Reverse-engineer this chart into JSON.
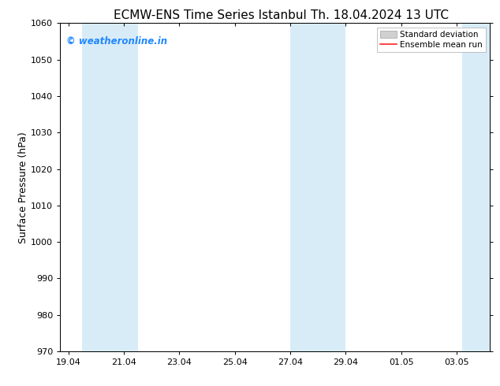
{
  "title_left": "ECMW-ENS Time Series Istanbul",
  "title_right": "Th. 18.04.2024 13 UTC",
  "ylabel": "Surface Pressure (hPa)",
  "ylim": [
    970,
    1060
  ],
  "yticks": [
    970,
    980,
    990,
    1000,
    1010,
    1020,
    1030,
    1040,
    1050,
    1060
  ],
  "xtick_labels": [
    "19.04",
    "21.04",
    "23.04",
    "25.04",
    "27.04",
    "29.04",
    "01.05",
    "03.05"
  ],
  "xtick_positions": [
    0,
    2,
    4,
    6,
    8,
    10,
    12,
    14
  ],
  "xlim": [
    -0.3,
    15.2
  ],
  "shaded_bands": [
    {
      "x_start": 0.5,
      "x_end": 2.5
    },
    {
      "x_start": 8.0,
      "x_end": 10.0
    },
    {
      "x_start": 14.2,
      "x_end": 15.2
    }
  ],
  "shade_color": "#d8ecf8",
  "background_color": "#ffffff",
  "legend_std_color": "#d0d0d0",
  "legend_std_edge": "#a0a0a0",
  "legend_mean_color": "#ff2222",
  "watermark_text": "© weatheronline.in",
  "watermark_color": "#2288ff",
  "title_fontsize": 11,
  "axis_label_fontsize": 9,
  "tick_fontsize": 8,
  "watermark_fontsize": 8.5,
  "legend_fontsize": 7.5
}
